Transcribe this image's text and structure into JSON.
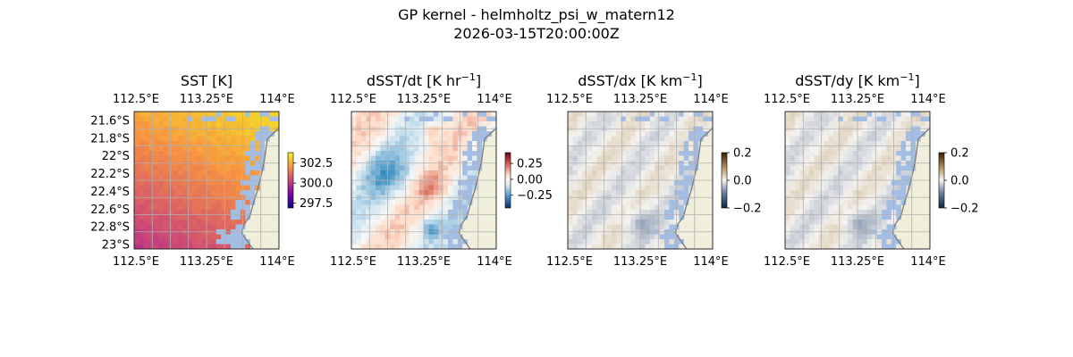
{
  "figure": {
    "title_line1": "GP kernel - helmholtz_psi_w_matern12",
    "title_line2": "2026-03-15T20:00:00Z"
  },
  "colors": {
    "land": "#efefdb",
    "ocean_mask": "#a4bde3",
    "coast": "#7a7a7a",
    "grid": "#b0b0b0"
  },
  "chart_data": [
    {
      "type": "heatmap",
      "id": "sst",
      "title": "SST",
      "unit": "[K]",
      "unit_sup": "",
      "x_ticks": [
        "112.5°E",
        "113.25°E",
        "114°E"
      ],
      "x_tick_values": [
        112.5,
        113.25,
        114.0
      ],
      "y_ticks": [
        "21.6°S",
        "21.8°S",
        "22°S",
        "22.2°S",
        "22.4°S",
        "22.6°S",
        "22.8°S",
        "23°S"
      ],
      "y_tick_values": [
        -21.6,
        -21.8,
        -22.0,
        -22.2,
        -22.4,
        -22.6,
        -22.8,
        -23.0
      ],
      "xlim": [
        112.5,
        114.0
      ],
      "ylim": [
        -23.05,
        -21.5
      ],
      "colorbar": {
        "ticks": [
          "302.5",
          "300.0",
          "297.5"
        ],
        "tick_values": [
          302.5,
          300.0,
          297.5
        ],
        "range": [
          296.9,
          303.8
        ],
        "colormap": "plasma"
      },
      "grid": true
    },
    {
      "type": "heatmap",
      "id": "dsst_dt",
      "title": "dSST/dt",
      "unit": "[K hr",
      "unit_sup": "−1",
      "unit_close": "]",
      "x_ticks": [
        "112.5°E",
        "113.25°E",
        "114°E"
      ],
      "x_tick_values": [
        112.5,
        113.25,
        114.0
      ],
      "y_ticks": [],
      "xlim": [
        112.5,
        114.0
      ],
      "ylim": [
        -23.05,
        -21.5
      ],
      "colorbar": {
        "ticks": [
          "0.25",
          "0.00",
          "−0.25"
        ],
        "tick_values": [
          0.25,
          0.0,
          -0.25
        ],
        "range": [
          -0.45,
          0.42
        ],
        "colormap": "RdBu_r"
      },
      "grid": true
    },
    {
      "type": "heatmap",
      "id": "dsst_dx",
      "title": "dSST/dx",
      "unit": "[K km",
      "unit_sup": "−1",
      "unit_close": "]",
      "x_ticks": [
        "112.5°E",
        "113.25°E",
        "114°E"
      ],
      "x_tick_values": [
        112.5,
        113.25,
        114.0
      ],
      "y_ticks": [],
      "xlim": [
        112.5,
        114.0
      ],
      "ylim": [
        -23.05,
        -21.5
      ],
      "colorbar": {
        "ticks": [
          "0.2",
          "0.0",
          "−0.2"
        ],
        "tick_values": [
          0.2,
          0.0,
          -0.2
        ],
        "range": [
          -0.2,
          0.2
        ],
        "colormap": "cmo.diff"
      },
      "grid": true
    },
    {
      "type": "heatmap",
      "id": "dsst_dy",
      "title": "dSST/dy",
      "unit": "[K km",
      "unit_sup": "−1",
      "unit_close": "]",
      "x_ticks": [
        "112.5°E",
        "113.25°E",
        "114°E"
      ],
      "x_tick_values": [
        112.5,
        113.25,
        114.0
      ],
      "y_ticks": [],
      "xlim": [
        112.5,
        114.0
      ],
      "ylim": [
        -23.05,
        -21.5
      ],
      "colorbar": {
        "ticks": [
          "0.2",
          "0.0",
          "−0.2"
        ],
        "tick_values": [
          0.2,
          0.0,
          -0.2
        ],
        "range": [
          -0.2,
          0.2
        ],
        "colormap": "cmo.diff"
      },
      "grid": true
    }
  ]
}
